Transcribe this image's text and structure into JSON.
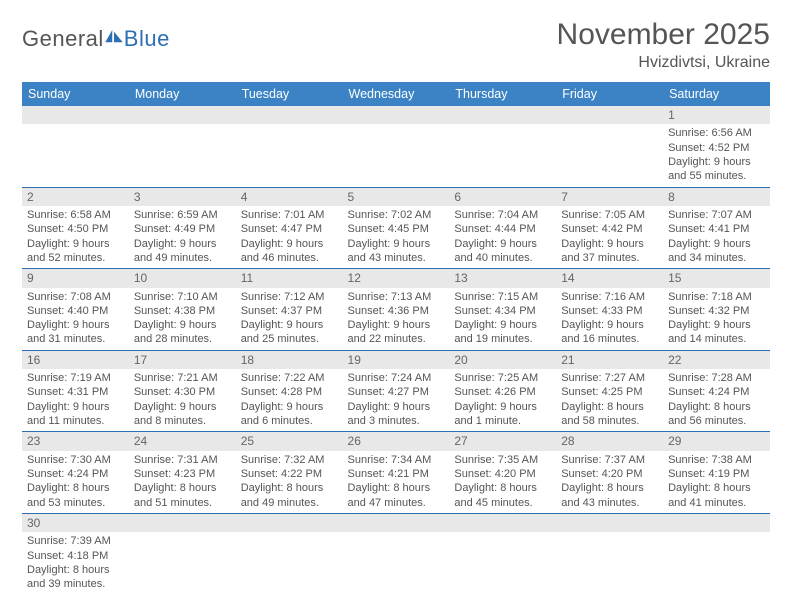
{
  "logo": {
    "word1": "General",
    "word2": "Blue"
  },
  "title": "November 2025",
  "location": "Hvizdivtsi, Ukraine",
  "colors": {
    "header_bg": "#3b83c4",
    "divider": "#2c6fb3",
    "daynum_bg": "#e8e8e8",
    "text": "#555555"
  },
  "layout": {
    "cols": 7,
    "rows": 6,
    "first_day_col_index": 6
  },
  "weekdays": [
    "Sunday",
    "Monday",
    "Tuesday",
    "Wednesday",
    "Thursday",
    "Friday",
    "Saturday"
  ],
  "days": [
    {
      "n": 1,
      "sunrise": "6:56 AM",
      "sunset": "4:52 PM",
      "day_h": 9,
      "day_m": 55
    },
    {
      "n": 2,
      "sunrise": "6:58 AM",
      "sunset": "4:50 PM",
      "day_h": 9,
      "day_m": 52
    },
    {
      "n": 3,
      "sunrise": "6:59 AM",
      "sunset": "4:49 PM",
      "day_h": 9,
      "day_m": 49
    },
    {
      "n": 4,
      "sunrise": "7:01 AM",
      "sunset": "4:47 PM",
      "day_h": 9,
      "day_m": 46
    },
    {
      "n": 5,
      "sunrise": "7:02 AM",
      "sunset": "4:45 PM",
      "day_h": 9,
      "day_m": 43
    },
    {
      "n": 6,
      "sunrise": "7:04 AM",
      "sunset": "4:44 PM",
      "day_h": 9,
      "day_m": 40
    },
    {
      "n": 7,
      "sunrise": "7:05 AM",
      "sunset": "4:42 PM",
      "day_h": 9,
      "day_m": 37
    },
    {
      "n": 8,
      "sunrise": "7:07 AM",
      "sunset": "4:41 PM",
      "day_h": 9,
      "day_m": 34
    },
    {
      "n": 9,
      "sunrise": "7:08 AM",
      "sunset": "4:40 PM",
      "day_h": 9,
      "day_m": 31
    },
    {
      "n": 10,
      "sunrise": "7:10 AM",
      "sunset": "4:38 PM",
      "day_h": 9,
      "day_m": 28
    },
    {
      "n": 11,
      "sunrise": "7:12 AM",
      "sunset": "4:37 PM",
      "day_h": 9,
      "day_m": 25
    },
    {
      "n": 12,
      "sunrise": "7:13 AM",
      "sunset": "4:36 PM",
      "day_h": 9,
      "day_m": 22
    },
    {
      "n": 13,
      "sunrise": "7:15 AM",
      "sunset": "4:34 PM",
      "day_h": 9,
      "day_m": 19
    },
    {
      "n": 14,
      "sunrise": "7:16 AM",
      "sunset": "4:33 PM",
      "day_h": 9,
      "day_m": 16
    },
    {
      "n": 15,
      "sunrise": "7:18 AM",
      "sunset": "4:32 PM",
      "day_h": 9,
      "day_m": 14
    },
    {
      "n": 16,
      "sunrise": "7:19 AM",
      "sunset": "4:31 PM",
      "day_h": 9,
      "day_m": 11
    },
    {
      "n": 17,
      "sunrise": "7:21 AM",
      "sunset": "4:30 PM",
      "day_h": 9,
      "day_m": 8
    },
    {
      "n": 18,
      "sunrise": "7:22 AM",
      "sunset": "4:28 PM",
      "day_h": 9,
      "day_m": 6
    },
    {
      "n": 19,
      "sunrise": "7:24 AM",
      "sunset": "4:27 PM",
      "day_h": 9,
      "day_m": 3
    },
    {
      "n": 20,
      "sunrise": "7:25 AM",
      "sunset": "4:26 PM",
      "day_h": 9,
      "day_m": 1
    },
    {
      "n": 21,
      "sunrise": "7:27 AM",
      "sunset": "4:25 PM",
      "day_h": 8,
      "day_m": 58
    },
    {
      "n": 22,
      "sunrise": "7:28 AM",
      "sunset": "4:24 PM",
      "day_h": 8,
      "day_m": 56
    },
    {
      "n": 23,
      "sunrise": "7:30 AM",
      "sunset": "4:24 PM",
      "day_h": 8,
      "day_m": 53
    },
    {
      "n": 24,
      "sunrise": "7:31 AM",
      "sunset": "4:23 PM",
      "day_h": 8,
      "day_m": 51
    },
    {
      "n": 25,
      "sunrise": "7:32 AM",
      "sunset": "4:22 PM",
      "day_h": 8,
      "day_m": 49
    },
    {
      "n": 26,
      "sunrise": "7:34 AM",
      "sunset": "4:21 PM",
      "day_h": 8,
      "day_m": 47
    },
    {
      "n": 27,
      "sunrise": "7:35 AM",
      "sunset": "4:20 PM",
      "day_h": 8,
      "day_m": 45
    },
    {
      "n": 28,
      "sunrise": "7:37 AM",
      "sunset": "4:20 PM",
      "day_h": 8,
      "day_m": 43
    },
    {
      "n": 29,
      "sunrise": "7:38 AM",
      "sunset": "4:19 PM",
      "day_h": 8,
      "day_m": 41
    },
    {
      "n": 30,
      "sunrise": "7:39 AM",
      "sunset": "4:18 PM",
      "day_h": 8,
      "day_m": 39
    }
  ],
  "labels": {
    "sunrise": "Sunrise:",
    "sunset": "Sunset:",
    "daylight": "Daylight:",
    "hours": "hours",
    "and": "and",
    "minute": "minute",
    "minutes": "minutes"
  }
}
